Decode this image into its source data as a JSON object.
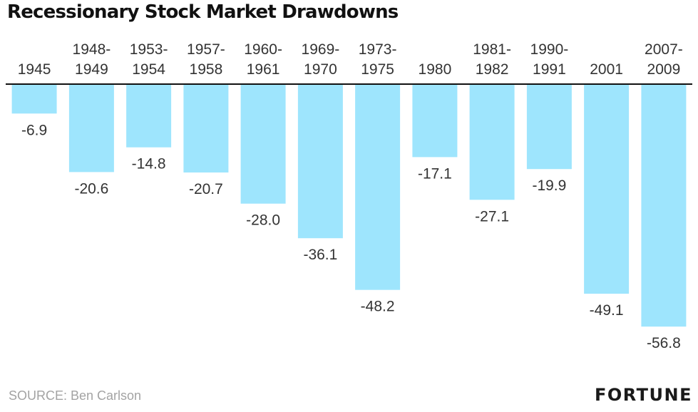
{
  "chart_data": {
    "type": "bar",
    "title": "Recessionary Stock Market Drawdowns",
    "categories": [
      "1945",
      "1948-\n1949",
      "1953-\n1954",
      "1957-\n1958",
      "1960-\n1961",
      "1969-\n1970",
      "1973-\n1975",
      "1980",
      "1981-\n1982",
      "1990-\n1991",
      "2001",
      "2007-\n2009"
    ],
    "values": [
      -6.9,
      -20.6,
      -14.8,
      -20.7,
      -28.0,
      -36.1,
      -48.2,
      -17.1,
      -27.1,
      -19.9,
      -49.1,
      -56.8
    ],
    "value_labels": [
      "-6.9",
      "-20.6",
      "-14.8",
      "-20.7",
      "-28.0",
      "-36.1",
      "-48.2",
      "-17.1",
      "-27.1",
      "-19.9",
      "-49.1",
      "-56.8"
    ],
    "xlabel": "",
    "ylabel": "",
    "ylim": [
      -56.8,
      0
    ],
    "grid": false,
    "bar_color": "#9ee5fd",
    "baseline_color": "#111111"
  },
  "footer": {
    "source": "SOURCE: Ben Carlson",
    "logo": "FORTUNE"
  }
}
